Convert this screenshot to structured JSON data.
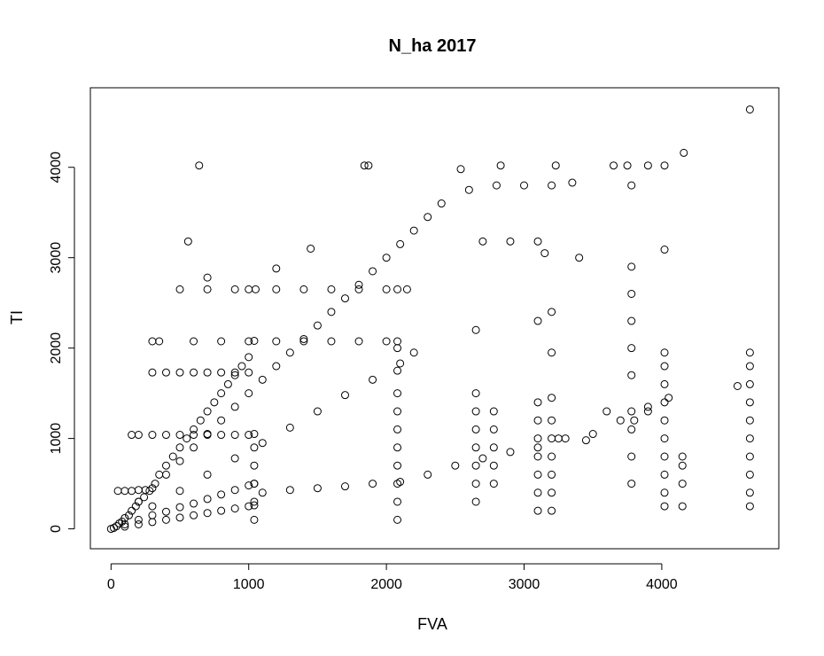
{
  "chart_data": {
    "type": "scatter",
    "title": "N_ha 2017",
    "xlabel": "FVA",
    "ylabel": "TI",
    "xlim": [
      -150,
      4850
    ],
    "ylim": [
      -220,
      4880
    ],
    "xticks": [
      0,
      1000,
      2000,
      3000,
      4000
    ],
    "yticks": [
      0,
      1000,
      2000,
      3000,
      4000
    ],
    "xtick_labels": [
      "0",
      "1000",
      "2000",
      "3000",
      "4000"
    ],
    "ytick_labels": [
      "0",
      "1000",
      "2000",
      "3000",
      "4000"
    ],
    "grid": false,
    "legend": "none",
    "marker": "open-circle",
    "marker_color": "#000000",
    "series": [
      {
        "values": [
          [
            0,
            0
          ],
          [
            20,
            10
          ],
          [
            40,
            30
          ],
          [
            60,
            60
          ],
          [
            80,
            80
          ],
          [
            100,
            120
          ],
          [
            130,
            150
          ],
          [
            150,
            200
          ],
          [
            180,
            250
          ],
          [
            200,
            300
          ],
          [
            240,
            350
          ],
          [
            280,
            420
          ],
          [
            320,
            500
          ],
          [
            350,
            600
          ],
          [
            400,
            700
          ],
          [
            450,
            800
          ],
          [
            500,
            900
          ],
          [
            550,
            1000
          ],
          [
            600,
            1100
          ],
          [
            650,
            1200
          ],
          [
            700,
            1300
          ],
          [
            750,
            1400
          ],
          [
            800,
            1500
          ],
          [
            850,
            1600
          ],
          [
            900,
            1700
          ],
          [
            950,
            1800
          ],
          [
            1000,
            1900
          ],
          [
            1040,
            2080
          ],
          [
            100,
            50
          ],
          [
            200,
            100
          ],
          [
            300,
            150
          ],
          [
            400,
            190
          ],
          [
            500,
            240
          ],
          [
            600,
            280
          ],
          [
            700,
            330
          ],
          [
            800,
            380
          ],
          [
            900,
            430
          ],
          [
            1000,
            480
          ],
          [
            1040,
            500
          ],
          [
            100,
            25
          ],
          [
            200,
            50
          ],
          [
            300,
            75
          ],
          [
            400,
            100
          ],
          [
            500,
            125
          ],
          [
            600,
            150
          ],
          [
            700,
            175
          ],
          [
            800,
            200
          ],
          [
            900,
            225
          ],
          [
            1000,
            250
          ],
          [
            1040,
            260
          ],
          [
            50,
            420
          ],
          [
            100,
            420
          ],
          [
            150,
            420
          ],
          [
            200,
            430
          ],
          [
            250,
            430
          ],
          [
            150,
            1040
          ],
          [
            200,
            1040
          ],
          [
            300,
            1040
          ],
          [
            400,
            1040
          ],
          [
            500,
            1040
          ],
          [
            600,
            1040
          ],
          [
            700,
            1040
          ],
          [
            800,
            1040
          ],
          [
            900,
            1040
          ],
          [
            1000,
            1040
          ],
          [
            1040,
            100
          ],
          [
            1040,
            300
          ],
          [
            1040,
            500
          ],
          [
            1040,
            700
          ],
          [
            1040,
            900
          ],
          [
            1040,
            1050
          ],
          [
            200,
            300
          ],
          [
            300,
            450
          ],
          [
            400,
            600
          ],
          [
            500,
            750
          ],
          [
            600,
            900
          ],
          [
            700,
            1050
          ],
          [
            800,
            1200
          ],
          [
            900,
            1350
          ],
          [
            1000,
            1500
          ],
          [
            1100,
            1650
          ],
          [
            1200,
            1800
          ],
          [
            1300,
            1950
          ],
          [
            1400,
            2100
          ],
          [
            1500,
            2250
          ],
          [
            1600,
            2400
          ],
          [
            1700,
            2550
          ],
          [
            1800,
            2700
          ],
          [
            1900,
            2850
          ],
          [
            2000,
            3000
          ],
          [
            2100,
            3150
          ],
          [
            2200,
            3300
          ],
          [
            2300,
            3450
          ],
          [
            2400,
            3600
          ],
          [
            2600,
            3750
          ],
          [
            2800,
            3800
          ],
          [
            3000,
            3800
          ],
          [
            3200,
            3800
          ],
          [
            3350,
            3830
          ],
          [
            300,
            250
          ],
          [
            500,
            420
          ],
          [
            700,
            600
          ],
          [
            900,
            780
          ],
          [
            1100,
            950
          ],
          [
            1300,
            1120
          ],
          [
            1500,
            1300
          ],
          [
            1700,
            1480
          ],
          [
            1900,
            1650
          ],
          [
            2100,
            1830
          ],
          [
            2200,
            1950
          ],
          [
            300,
            2075
          ],
          [
            600,
            2075
          ],
          [
            800,
            2075
          ],
          [
            1000,
            2075
          ],
          [
            1200,
            2075
          ],
          [
            1400,
            2075
          ],
          [
            1600,
            2075
          ],
          [
            1800,
            2075
          ],
          [
            2000,
            2075
          ],
          [
            2080,
            2075
          ],
          [
            300,
            1730
          ],
          [
            400,
            1730
          ],
          [
            500,
            1730
          ],
          [
            600,
            1730
          ],
          [
            700,
            1730
          ],
          [
            800,
            1730
          ],
          [
            900,
            1730
          ],
          [
            1000,
            1730
          ],
          [
            1050,
            2650
          ],
          [
            1200,
            2650
          ],
          [
            1400,
            2650
          ],
          [
            1600,
            2650
          ],
          [
            1800,
            2650
          ],
          [
            2000,
            2650
          ],
          [
            2080,
            2650
          ],
          [
            2150,
            2650
          ],
          [
            500,
            2650
          ],
          [
            700,
            2650
          ],
          [
            900,
            2650
          ],
          [
            1000,
            2650
          ],
          [
            1100,
            400
          ],
          [
            1300,
            430
          ],
          [
            1500,
            450
          ],
          [
            1700,
            470
          ],
          [
            1900,
            500
          ],
          [
            2100,
            520
          ],
          [
            2300,
            600
          ],
          [
            2500,
            700
          ],
          [
            2700,
            780
          ],
          [
            2900,
            850
          ],
          [
            3100,
            900
          ],
          [
            3300,
            1000
          ],
          [
            3500,
            1050
          ],
          [
            3700,
            1200
          ],
          [
            3900,
            1350
          ],
          [
            4050,
            1450
          ],
          [
            2080,
            100
          ],
          [
            2080,
            300
          ],
          [
            2080,
            500
          ],
          [
            2080,
            700
          ],
          [
            2080,
            900
          ],
          [
            2080,
            1100
          ],
          [
            2080,
            1300
          ],
          [
            2080,
            1500
          ],
          [
            2080,
            1750
          ],
          [
            2080,
            2000
          ],
          [
            2650,
            300
          ],
          [
            2650,
            500
          ],
          [
            2650,
            700
          ],
          [
            2650,
            900
          ],
          [
            2650,
            1100
          ],
          [
            2650,
            1300
          ],
          [
            2650,
            1500
          ],
          [
            2650,
            2200
          ],
          [
            2780,
            500
          ],
          [
            2780,
            700
          ],
          [
            2780,
            900
          ],
          [
            2780,
            1100
          ],
          [
            2780,
            1300
          ],
          [
            3100,
            200
          ],
          [
            3100,
            400
          ],
          [
            3100,
            600
          ],
          [
            3100,
            800
          ],
          [
            3100,
            1000
          ],
          [
            3100,
            1200
          ],
          [
            3100,
            1400
          ],
          [
            3100,
            2300
          ],
          [
            3200,
            200
          ],
          [
            3200,
            400
          ],
          [
            3200,
            600
          ],
          [
            3200,
            800
          ],
          [
            3200,
            1000
          ],
          [
            3200,
            1200
          ],
          [
            3200,
            1450
          ],
          [
            3200,
            1950
          ],
          [
            3200,
            2400
          ],
          [
            3780,
            500
          ],
          [
            3780,
            800
          ],
          [
            3780,
            1100
          ],
          [
            3780,
            1300
          ],
          [
            3780,
            1700
          ],
          [
            3780,
            2000
          ],
          [
            3780,
            2300
          ],
          [
            3780,
            2600
          ],
          [
            3780,
            2900
          ],
          [
            4020,
            250
          ],
          [
            4020,
            400
          ],
          [
            4020,
            600
          ],
          [
            4020,
            800
          ],
          [
            4020,
            1000
          ],
          [
            4020,
            1200
          ],
          [
            4020,
            1400
          ],
          [
            4020,
            1600
          ],
          [
            4020,
            1800
          ],
          [
            4020,
            1950
          ],
          [
            4150,
            250
          ],
          [
            4150,
            500
          ],
          [
            4150,
            700
          ],
          [
            4150,
            800
          ],
          [
            4640,
            250
          ],
          [
            4640,
            400
          ],
          [
            4640,
            600
          ],
          [
            4640,
            800
          ],
          [
            4640,
            1000
          ],
          [
            4640,
            1200
          ],
          [
            4640,
            1400
          ],
          [
            4640,
            1600
          ],
          [
            4640,
            1800
          ],
          [
            4640,
            1950
          ],
          [
            4550,
            1580
          ],
          [
            640,
            4020
          ],
          [
            1840,
            4020
          ],
          [
            1870,
            4020
          ],
          [
            2540,
            3980
          ],
          [
            2830,
            4020
          ],
          [
            3230,
            4020
          ],
          [
            3650,
            4020
          ],
          [
            3750,
            4020
          ],
          [
            3900,
            4020
          ],
          [
            4020,
            4020
          ],
          [
            4160,
            4160
          ],
          [
            4640,
            4640
          ],
          [
            3780,
            3800
          ],
          [
            4020,
            3090
          ],
          [
            560,
            3180
          ],
          [
            350,
            2075
          ],
          [
            700,
            2780
          ],
          [
            1450,
            3100
          ],
          [
            1200,
            2880
          ],
          [
            2700,
            3180
          ],
          [
            2900,
            3180
          ],
          [
            3100,
            3180
          ],
          [
            3150,
            3050
          ],
          [
            3400,
            3000
          ],
          [
            3600,
            1300
          ],
          [
            3800,
            1200
          ],
          [
            3900,
            1300
          ],
          [
            3250,
            1000
          ],
          [
            3450,
            980
          ]
        ]
      }
    ]
  }
}
